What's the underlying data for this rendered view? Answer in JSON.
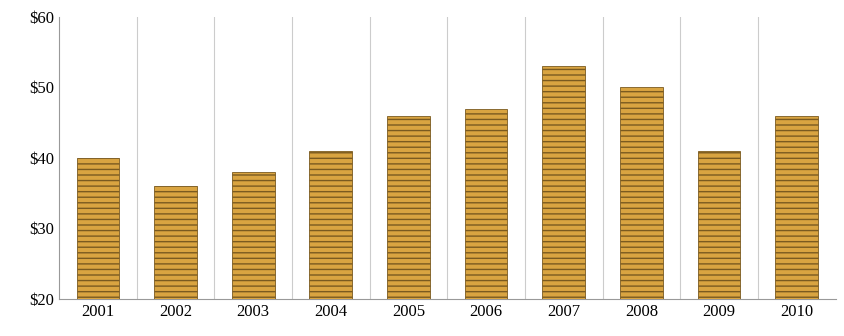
{
  "chart_data": {
    "type": "bar",
    "categories": [
      "2001",
      "2002",
      "2003",
      "2004",
      "2005",
      "2006",
      "2007",
      "2008",
      "2009",
      "2010"
    ],
    "values": [
      40,
      36,
      38,
      41,
      46,
      47,
      53,
      50,
      41,
      46
    ],
    "color": "#d9a441",
    "ylim": [
      20,
      60
    ],
    "yticks": [
      {
        "value": 20,
        "label": "$20"
      },
      {
        "value": 30,
        "label": "$30"
      },
      {
        "value": 40,
        "label": "$40"
      },
      {
        "value": 50,
        "label": "$50"
      },
      {
        "value": 60,
        "label": "$60"
      }
    ],
    "grid": true
  }
}
